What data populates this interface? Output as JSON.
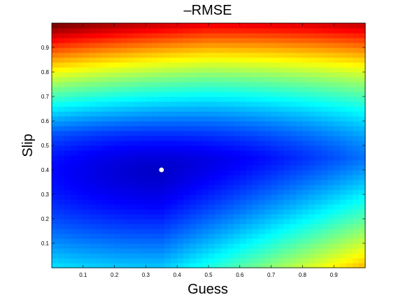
{
  "chart_data": {
    "type": "heatmap",
    "title": "–RMSE",
    "xlabel": "Guess",
    "ylabel": "Slip",
    "xlim": [
      0.0,
      1.0
    ],
    "ylim": [
      0.0,
      1.0
    ],
    "xticks": [
      "0.1",
      "0.2",
      "0.3",
      "0.4",
      "0.5",
      "0.6",
      "0.7",
      "0.8",
      "0.9"
    ],
    "yticks": [
      "0.1",
      "0.2",
      "0.3",
      "0.4",
      "0.5",
      "0.6",
      "0.7",
      "0.8",
      "0.9"
    ],
    "grid": false,
    "colormap": "jet",
    "grid_resolution": 50,
    "surface_model": {
      "description": "value normalized 0..1 (0 = dark blue, 1 = dark red); minimum near guess 0.35, slip 0.40",
      "min_point": {
        "guess": 0.35,
        "slip": 0.4
      },
      "samples": [
        {
          "guess": 0.02,
          "slip": 0.98,
          "value": 1.0
        },
        {
          "guess": 0.5,
          "slip": 0.95,
          "value": 0.72
        },
        {
          "guess": 0.98,
          "slip": 0.98,
          "value": 0.62
        },
        {
          "guess": 0.02,
          "slip": 0.02,
          "value": 0.32
        },
        {
          "guess": 0.98,
          "slip": 0.02,
          "value": 0.6
        },
        {
          "guess": 0.35,
          "slip": 0.4,
          "value": 0.0
        },
        {
          "guess": 0.02,
          "slip": 0.6,
          "value": 0.12
        },
        {
          "guess": 0.98,
          "slip": 0.5,
          "value": 0.08
        }
      ]
    },
    "marker": {
      "guess": 0.35,
      "slip": 0.4,
      "color": "#ffffff"
    }
  }
}
